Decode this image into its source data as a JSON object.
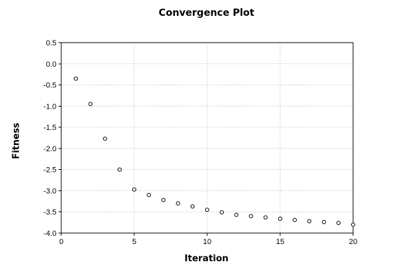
{
  "chart_data": {
    "type": "scatter",
    "title": "Convergence Plot",
    "xlabel": "Iteration",
    "ylabel": "Fitness",
    "xlim": [
      0,
      20
    ],
    "ylim": [
      -4.0,
      0.5
    ],
    "x_ticks": [
      0,
      5,
      10,
      15,
      20
    ],
    "x_tick_labels": [
      "0",
      "5",
      "10",
      "15",
      "20"
    ],
    "y_ticks": [
      0.5,
      0.0,
      -0.5,
      -1.0,
      -1.5,
      -2.0,
      -2.5,
      -3.0,
      -3.5,
      -4.0
    ],
    "y_tick_labels": [
      "0.5",
      "0.0",
      "-0.5",
      "-1.0",
      "-1.5",
      "-2.0",
      "-2.5",
      "-3.0",
      "-3.5",
      "-4.0"
    ],
    "grid": "dotted",
    "legend": "none",
    "marker": "open-circle",
    "series": [
      {
        "name": "fitness",
        "x": [
          1,
          2,
          3,
          4,
          5,
          6,
          7,
          8,
          9,
          10,
          11,
          12,
          13,
          14,
          15,
          16,
          17,
          18,
          19,
          20
        ],
        "y": [
          -0.35,
          -0.95,
          -1.77,
          -2.5,
          -2.97,
          -3.1,
          -3.22,
          -3.3,
          -3.37,
          -3.45,
          -3.51,
          -3.57,
          -3.6,
          -3.63,
          -3.66,
          -3.69,
          -3.72,
          -3.74,
          -3.76,
          -3.8
        ]
      }
    ],
    "colors": {
      "marker_stroke": "#000000",
      "marker_fill": "#ffffff",
      "grid": "#b8b8b8",
      "axis": "#000000",
      "background": "#ffffff",
      "text": "#000000"
    }
  }
}
